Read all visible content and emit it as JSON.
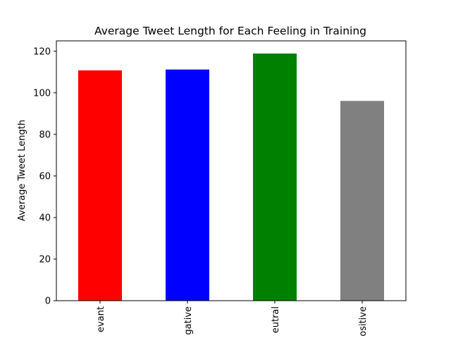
{
  "chart_data": {
    "type": "bar",
    "title": "Average Tweet Length for Each Feeling in Training",
    "xlabel": "",
    "ylabel": "Average Tweet Length",
    "categories": [
      "evant",
      "gative",
      "eutral",
      "ositive"
    ],
    "values": [
      110.8,
      111.2,
      118.9,
      96.1
    ],
    "colors": [
      "#ff0000",
      "#0000ff",
      "#008000",
      "#808080"
    ],
    "ylim": [
      0,
      125
    ],
    "yticks": [
      0,
      20,
      40,
      60,
      80,
      100,
      120
    ],
    "grid": false,
    "legend": "none"
  }
}
